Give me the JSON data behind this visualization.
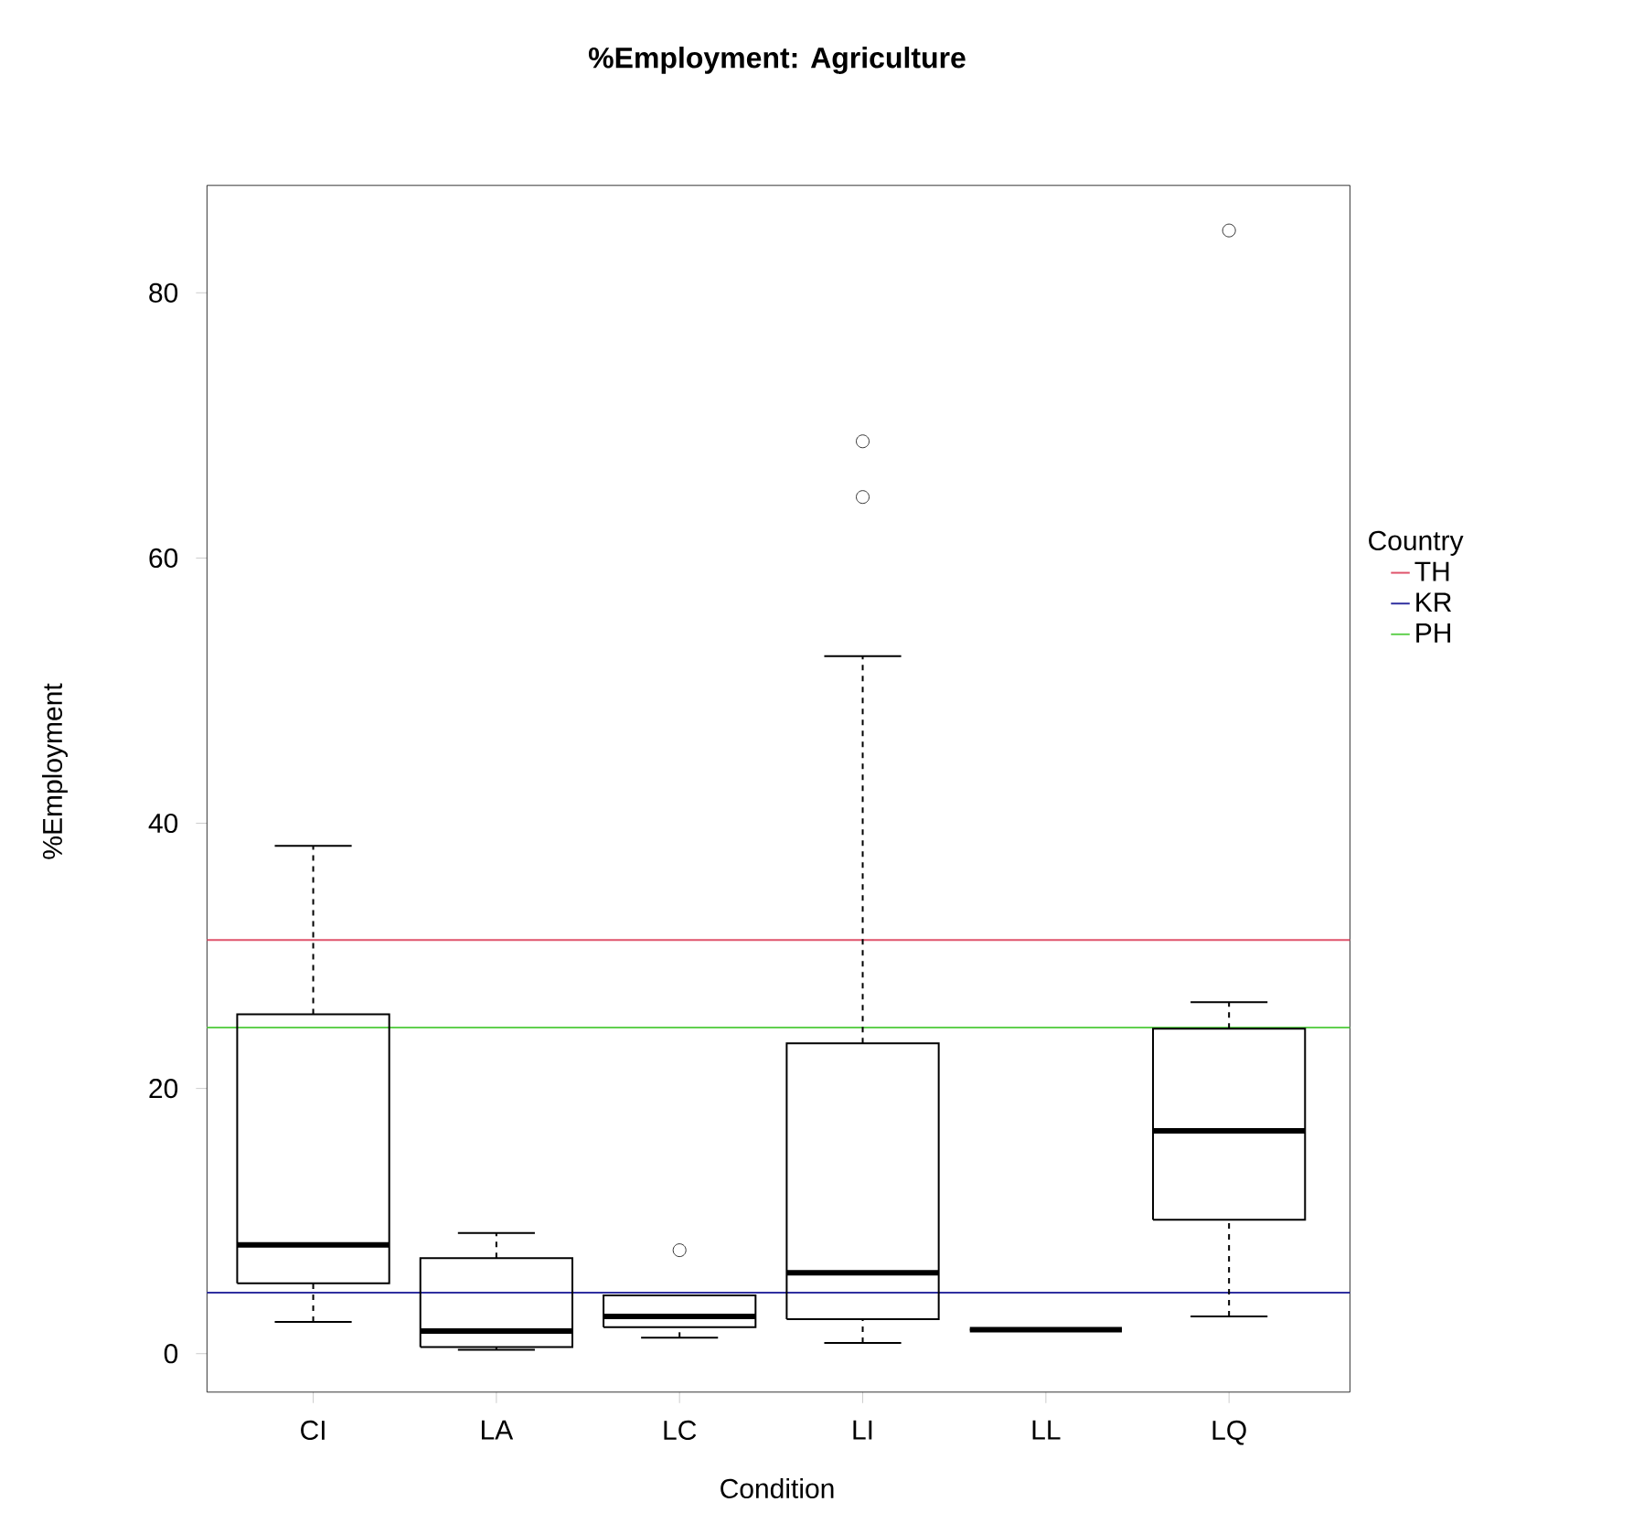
{
  "chart_data": {
    "type": "box",
    "title": "%Employment: Agriculture",
    "xlabel": "Condition",
    "ylabel": "%Employment",
    "legend_title": "Country",
    "legend": "right",
    "categories": [
      "CI",
      "LA",
      "LC",
      "LI",
      "LL",
      "LQ"
    ],
    "boxes": [
      {
        "low": 2.4,
        "q1": 5.3,
        "median": 8.2,
        "q3": 25.6,
        "high": 38.3
      },
      {
        "low": 0.3,
        "q1": 0.5,
        "median": 1.7,
        "q3": 7.2,
        "high": 9.1
      },
      {
        "low": 1.2,
        "q1": 2.0,
        "median": 2.8,
        "q3": 4.4,
        "high": 4.4,
        "outliers": [
          7.8
        ]
      },
      {
        "low": 0.8,
        "q1": 2.6,
        "median": 6.1,
        "q3": 23.4,
        "high": 52.6,
        "outliers": [
          64.6,
          68.8
        ]
      },
      {
        "low": 1.8,
        "q1": 1.8,
        "median": 1.8,
        "q3": 1.8,
        "high": 1.8
      },
      {
        "low": 2.8,
        "q1": 10.1,
        "median": 16.8,
        "q3": 24.5,
        "high": 26.5,
        "outliers": [
          84.7
        ]
      }
    ],
    "ylim": [
      -2.9,
      88.1
    ],
    "yticks": [
      0,
      20,
      40,
      60,
      80
    ],
    "ref_lines": [
      {
        "axis": "y",
        "value": 31.2,
        "label": "TH",
        "color": "#df536b"
      },
      {
        "axis": "y",
        "value": 4.6,
        "label": "KR",
        "color": "#3030a0"
      },
      {
        "axis": "y",
        "value": 24.6,
        "label": "PH",
        "color": "#61d04f"
      }
    ]
  }
}
